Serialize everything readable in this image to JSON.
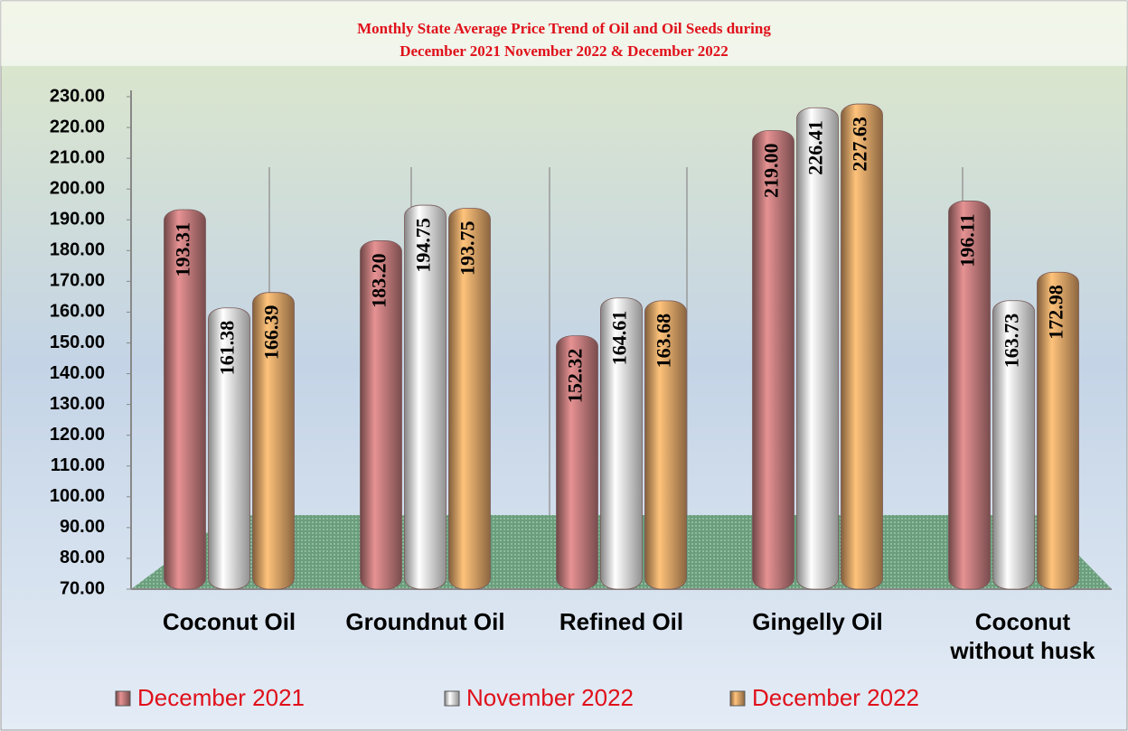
{
  "chart_data": {
    "type": "bar",
    "title": [
      "Monthly State Average Price Trend of  Oil and Oil Seeds during",
      "December 2021  November 2022  &  December 2022"
    ],
    "categories": [
      "Coconut Oil",
      "Groundnut Oil",
      "Refined Oil",
      "Gingelly Oil",
      "Coconut without husk"
    ],
    "series": [
      {
        "name": "December 2021",
        "color": "#c97f80",
        "values": [
          193.31,
          183.2,
          152.32,
          219.0,
          196.11
        ],
        "value_labels": [
          "193.31",
          "183.20",
          "152.32",
          "219.00",
          "196.11"
        ]
      },
      {
        "name": "November 2022",
        "color": "#f2f2f2",
        "values": [
          161.38,
          194.75,
          164.61,
          226.41,
          163.73
        ],
        "value_labels": [
          "161.38",
          "194.75",
          "164.61",
          "226.41",
          "163.73"
        ]
      },
      {
        "name": "December 2022",
        "color": "#e9aa6b",
        "values": [
          166.39,
          193.75,
          163.68,
          227.63,
          172.98
        ],
        "value_labels": [
          "166.39",
          "193.75",
          "163.68",
          "227.63",
          "172.98"
        ]
      }
    ],
    "ylim": [
      70,
      230
    ],
    "yticks": [
      {
        "value": 70,
        "label": "70.00"
      },
      {
        "value": 80,
        "label": "80.00"
      },
      {
        "value": 90,
        "label": "90.00"
      },
      {
        "value": 100,
        "label": "100.00"
      },
      {
        "value": 110,
        "label": "110.00"
      },
      {
        "value": 120,
        "label": "120.00"
      },
      {
        "value": 130,
        "label": "130.00"
      },
      {
        "value": 140,
        "label": "140.00"
      },
      {
        "value": 150,
        "label": "150.00"
      },
      {
        "value": 160,
        "label": "160.00"
      },
      {
        "value": 170,
        "label": "170.00"
      },
      {
        "value": 180,
        "label": "180.00"
      },
      {
        "value": 190,
        "label": "190.00"
      },
      {
        "value": 200,
        "label": "200.00"
      },
      {
        "value": 210,
        "label": "210.00"
      },
      {
        "value": 220,
        "label": "220.00"
      },
      {
        "value": 230,
        "label": "230.00"
      }
    ],
    "legend": "bottom"
  }
}
